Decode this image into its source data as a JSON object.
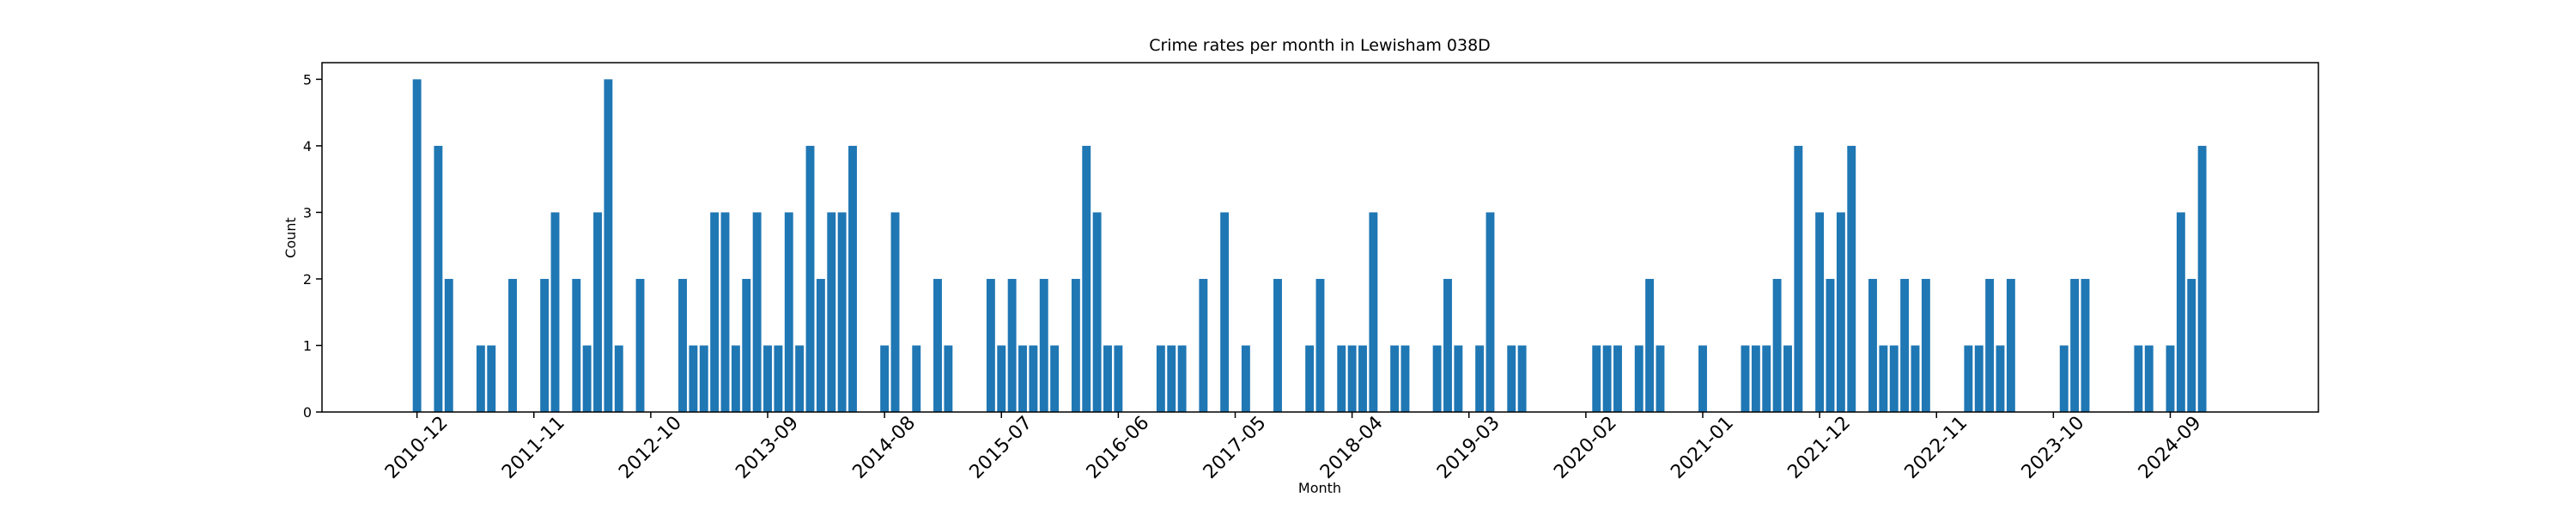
{
  "chart_data": {
    "type": "bar",
    "title": "Crime rates per month in Lewisham 038D",
    "xlabel": "Month",
    "ylabel": "Count",
    "color": "#1f77b4",
    "categories": [
      "2010-12",
      null,
      null,
      null,
      null,
      null,
      null,
      null,
      null,
      null,
      null,
      "2011-11",
      null,
      null,
      null,
      null,
      null,
      null,
      null,
      null,
      null,
      null,
      "2012-10",
      null,
      null,
      null,
      null,
      null,
      null,
      null,
      null,
      null,
      null,
      "2013-09",
      null,
      null,
      null,
      null,
      null,
      null,
      null,
      null,
      null,
      null,
      "2014-08",
      null,
      null,
      null,
      null,
      null,
      null,
      null,
      null,
      null,
      null,
      "2015-07",
      null,
      null,
      null,
      null,
      null,
      null,
      null,
      null,
      null,
      null,
      "2016-06",
      null,
      null,
      null,
      null,
      null,
      null,
      null,
      null,
      null,
      null,
      "2017-05",
      null,
      null,
      null,
      null,
      null,
      null,
      null,
      null,
      null,
      null,
      "2018-04",
      null,
      null,
      null,
      null,
      null,
      null,
      null,
      null,
      null,
      null,
      "2019-03",
      null,
      null,
      null,
      null,
      null,
      null,
      null,
      null,
      null,
      null,
      "2020-02",
      null,
      null,
      null,
      null,
      null,
      null,
      null,
      null,
      null,
      null,
      "2021-01",
      null,
      null,
      null,
      null,
      null,
      null,
      null,
      null,
      null,
      null,
      "2021-12",
      null,
      null,
      null,
      null,
      null,
      null,
      null,
      null,
      null,
      null,
      "2022-11",
      null,
      null,
      null,
      null,
      null,
      null,
      null,
      null,
      null,
      null,
      "2023-10",
      null,
      null,
      null,
      null,
      null,
      null,
      null,
      null,
      null,
      null,
      "2024-09",
      null,
      null,
      null,
      null,
      null
    ],
    "values": [
      5,
      0,
      4,
      2,
      0,
      0,
      1,
      1,
      0,
      2,
      0,
      0,
      2,
      3,
      0,
      2,
      1,
      3,
      5,
      1,
      0,
      2,
      0,
      0,
      0,
      2,
      1,
      1,
      3,
      3,
      1,
      2,
      3,
      1,
      1,
      3,
      1,
      4,
      2,
      3,
      3,
      4,
      0,
      0,
      1,
      3,
      0,
      1,
      0,
      2,
      1,
      0,
      0,
      0,
      2,
      1,
      2,
      1,
      1,
      2,
      1,
      0,
      2,
      4,
      3,
      1,
      1,
      0,
      0,
      0,
      1,
      1,
      1,
      0,
      2,
      0,
      3,
      0,
      1,
      0,
      0,
      2,
      0,
      0,
      1,
      2,
      0,
      1,
      1,
      1,
      3,
      0,
      1,
      1,
      0,
      0,
      1,
      2,
      1,
      0,
      1,
      3,
      0,
      1,
      1,
      0,
      0,
      0,
      0,
      0,
      0,
      1,
      1,
      1,
      0,
      1,
      2,
      1,
      0,
      0,
      0,
      1,
      0,
      0,
      0,
      1,
      1,
      1,
      2,
      1,
      4,
      0,
      3,
      2,
      3,
      4,
      0,
      2,
      1,
      1,
      2,
      1,
      2,
      0,
      0,
      0,
      1,
      1,
      2,
      1,
      2,
      0,
      0,
      0,
      0,
      1,
      2,
      2,
      0,
      0,
      0,
      0,
      1,
      1,
      0,
      1,
      3,
      2,
      4,
      0,
      0
    ],
    "ylim": [
      0,
      5.25
    ],
    "yticks": [
      0,
      1,
      2,
      3,
      4,
      5
    ]
  }
}
